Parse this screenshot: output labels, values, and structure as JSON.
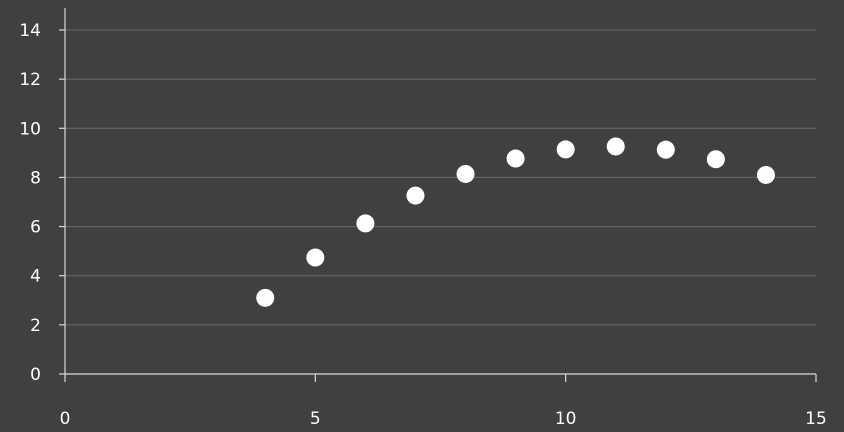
{
  "chart_data": {
    "type": "scatter",
    "title": "",
    "xlabel": "",
    "ylabel": "",
    "xlim": [
      0,
      15
    ],
    "ylim": [
      0,
      14
    ],
    "grid": true,
    "x_ticks": [
      "0",
      "5",
      "10",
      "15"
    ],
    "y_ticks": [
      "0",
      "2",
      "4",
      "6",
      "8",
      "10",
      "12",
      "14"
    ],
    "series": [
      {
        "x": [
          4,
          5,
          6,
          7,
          8,
          9,
          10,
          11,
          12,
          13,
          14
        ],
        "y": [
          3.1,
          4.74,
          6.13,
          7.26,
          8.14,
          8.77,
          9.14,
          9.26,
          9.13,
          8.74,
          8.1
        ]
      }
    ],
    "colors": {
      "background": "#404040",
      "points": "#ffffff",
      "grid": "#6a6a6a",
      "axis": "#d9d9d9"
    }
  }
}
